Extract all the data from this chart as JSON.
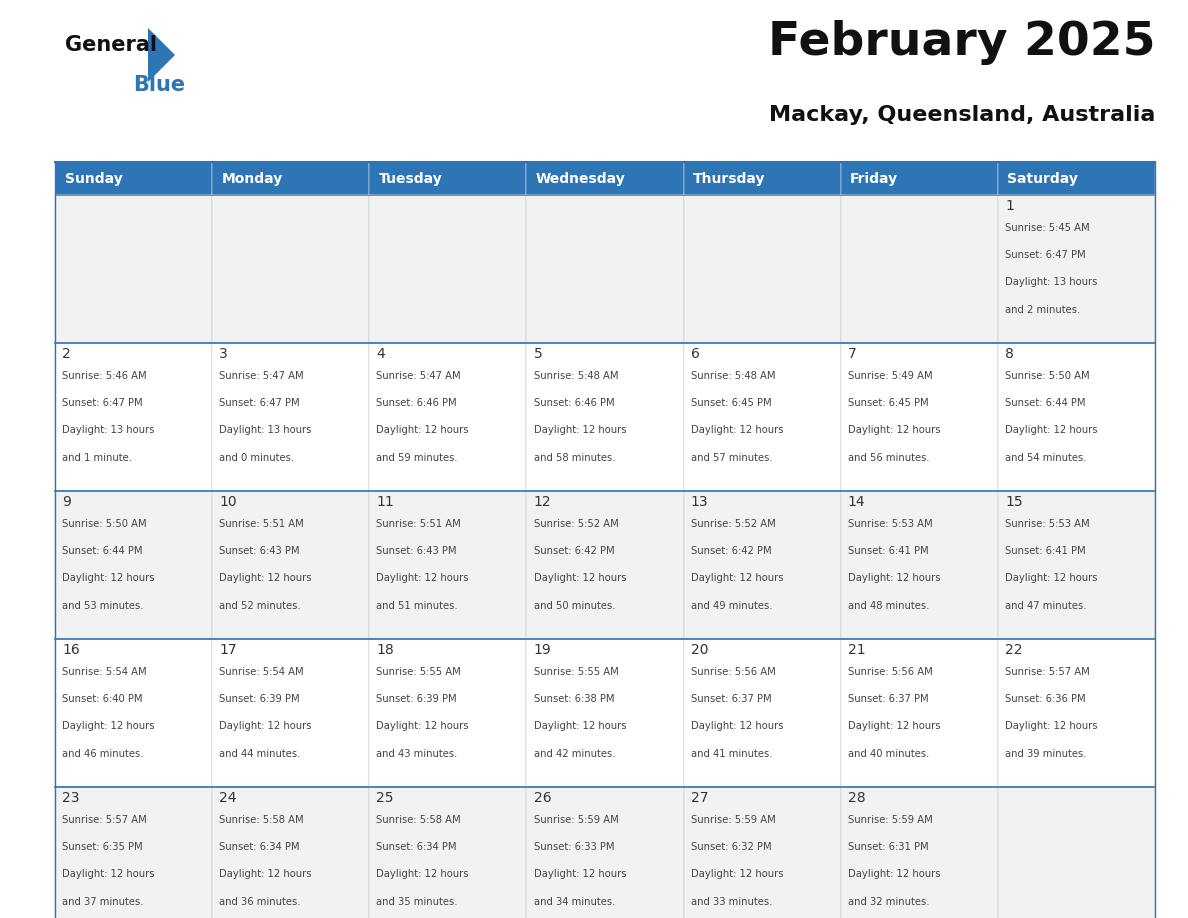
{
  "title": "February 2025",
  "subtitle": "Mackay, Queensland, Australia",
  "header_bg_color": "#2E75B6",
  "header_text_color": "#FFFFFF",
  "cell_bg_even": "#F2F2F2",
  "cell_bg_odd": "#FFFFFF",
  "border_color": "#2E75B6",
  "grid_line_color": "#BBBBBB",
  "day_number_color": "#333333",
  "cell_text_color": "#444444",
  "title_color": "#111111",
  "subtitle_color": "#111111",
  "logo_general_color": "#111111",
  "logo_blue_color": "#2E75B6",
  "days_of_week": [
    "Sunday",
    "Monday",
    "Tuesday",
    "Wednesday",
    "Thursday",
    "Friday",
    "Saturday"
  ],
  "calendar_data": [
    [
      null,
      null,
      null,
      null,
      null,
      null,
      {
        "day": 1,
        "sunrise": "5:45 AM",
        "sunset": "6:47 PM",
        "daylight_hours": 13,
        "daylight_minutes": 2
      }
    ],
    [
      {
        "day": 2,
        "sunrise": "5:46 AM",
        "sunset": "6:47 PM",
        "daylight_hours": 13,
        "daylight_minutes": 1
      },
      {
        "day": 3,
        "sunrise": "5:47 AM",
        "sunset": "6:47 PM",
        "daylight_hours": 13,
        "daylight_minutes": 0
      },
      {
        "day": 4,
        "sunrise": "5:47 AM",
        "sunset": "6:46 PM",
        "daylight_hours": 12,
        "daylight_minutes": 59
      },
      {
        "day": 5,
        "sunrise": "5:48 AM",
        "sunset": "6:46 PM",
        "daylight_hours": 12,
        "daylight_minutes": 58
      },
      {
        "day": 6,
        "sunrise": "5:48 AM",
        "sunset": "6:45 PM",
        "daylight_hours": 12,
        "daylight_minutes": 57
      },
      {
        "day": 7,
        "sunrise": "5:49 AM",
        "sunset": "6:45 PM",
        "daylight_hours": 12,
        "daylight_minutes": 56
      },
      {
        "day": 8,
        "sunrise": "5:50 AM",
        "sunset": "6:44 PM",
        "daylight_hours": 12,
        "daylight_minutes": 54
      }
    ],
    [
      {
        "day": 9,
        "sunrise": "5:50 AM",
        "sunset": "6:44 PM",
        "daylight_hours": 12,
        "daylight_minutes": 53
      },
      {
        "day": 10,
        "sunrise": "5:51 AM",
        "sunset": "6:43 PM",
        "daylight_hours": 12,
        "daylight_minutes": 52
      },
      {
        "day": 11,
        "sunrise": "5:51 AM",
        "sunset": "6:43 PM",
        "daylight_hours": 12,
        "daylight_minutes": 51
      },
      {
        "day": 12,
        "sunrise": "5:52 AM",
        "sunset": "6:42 PM",
        "daylight_hours": 12,
        "daylight_minutes": 50
      },
      {
        "day": 13,
        "sunrise": "5:52 AM",
        "sunset": "6:42 PM",
        "daylight_hours": 12,
        "daylight_minutes": 49
      },
      {
        "day": 14,
        "sunrise": "5:53 AM",
        "sunset": "6:41 PM",
        "daylight_hours": 12,
        "daylight_minutes": 48
      },
      {
        "day": 15,
        "sunrise": "5:53 AM",
        "sunset": "6:41 PM",
        "daylight_hours": 12,
        "daylight_minutes": 47
      }
    ],
    [
      {
        "day": 16,
        "sunrise": "5:54 AM",
        "sunset": "6:40 PM",
        "daylight_hours": 12,
        "daylight_minutes": 46
      },
      {
        "day": 17,
        "sunrise": "5:54 AM",
        "sunset": "6:39 PM",
        "daylight_hours": 12,
        "daylight_minutes": 44
      },
      {
        "day": 18,
        "sunrise": "5:55 AM",
        "sunset": "6:39 PM",
        "daylight_hours": 12,
        "daylight_minutes": 43
      },
      {
        "day": 19,
        "sunrise": "5:55 AM",
        "sunset": "6:38 PM",
        "daylight_hours": 12,
        "daylight_minutes": 42
      },
      {
        "day": 20,
        "sunrise": "5:56 AM",
        "sunset": "6:37 PM",
        "daylight_hours": 12,
        "daylight_minutes": 41
      },
      {
        "day": 21,
        "sunrise": "5:56 AM",
        "sunset": "6:37 PM",
        "daylight_hours": 12,
        "daylight_minutes": 40
      },
      {
        "day": 22,
        "sunrise": "5:57 AM",
        "sunset": "6:36 PM",
        "daylight_hours": 12,
        "daylight_minutes": 39
      }
    ],
    [
      {
        "day": 23,
        "sunrise": "5:57 AM",
        "sunset": "6:35 PM",
        "daylight_hours": 12,
        "daylight_minutes": 37
      },
      {
        "day": 24,
        "sunrise": "5:58 AM",
        "sunset": "6:34 PM",
        "daylight_hours": 12,
        "daylight_minutes": 36
      },
      {
        "day": 25,
        "sunrise": "5:58 AM",
        "sunset": "6:34 PM",
        "daylight_hours": 12,
        "daylight_minutes": 35
      },
      {
        "day": 26,
        "sunrise": "5:59 AM",
        "sunset": "6:33 PM",
        "daylight_hours": 12,
        "daylight_minutes": 34
      },
      {
        "day": 27,
        "sunrise": "5:59 AM",
        "sunset": "6:32 PM",
        "daylight_hours": 12,
        "daylight_minutes": 33
      },
      {
        "day": 28,
        "sunrise": "5:59 AM",
        "sunset": "6:31 PM",
        "daylight_hours": 12,
        "daylight_minutes": 32
      },
      null
    ]
  ]
}
